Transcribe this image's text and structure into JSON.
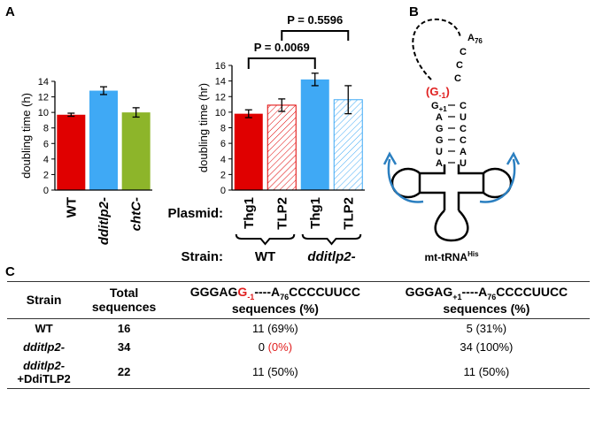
{
  "panel_labels": [
    "A",
    "B",
    "C"
  ],
  "chart_data": [
    {
      "type": "bar",
      "ylabel": "doubling time (h)",
      "categories": [
        "WT",
        "dditlp2-",
        "chtC-"
      ],
      "values": [
        9.7,
        12.8,
        10.0
      ],
      "errors": [
        0.2,
        0.5,
        0.6
      ],
      "colors": [
        "#e00000",
        "#3fa9f5",
        "#8db52a"
      ],
      "ylim": [
        0,
        14
      ],
      "yticks": [
        0,
        2,
        4,
        6,
        8,
        10,
        12,
        14
      ]
    },
    {
      "type": "bar",
      "ylabel": "doubling time (hr)",
      "row_labels": [
        "Plasmid:",
        "Strain:"
      ],
      "categories": [
        "Thg1",
        "TLP2",
        "Thg1",
        "TLP2"
      ],
      "values": [
        9.8,
        10.9,
        14.2,
        11.6
      ],
      "errors": [
        0.5,
        0.8,
        0.8,
        1.8
      ],
      "colors": [
        "#e00000",
        "#e00000",
        "#3fa9f5",
        "#3fa9f5"
      ],
      "hatched": [
        false,
        true,
        false,
        true
      ],
      "groups": [
        "WT",
        "dditlp2-"
      ],
      "annotations": [
        "P = 0.0069",
        "P = 0.5596"
      ],
      "ylim": [
        0,
        16
      ],
      "yticks": [
        0,
        2,
        4,
        6,
        8,
        10,
        12,
        14,
        16
      ]
    }
  ],
  "trna": {
    "tail": [
      "C",
      "C",
      "C"
    ],
    "a76": [
      "A",
      "76"
    ],
    "g_minus1": [
      "(G",
      "-1",
      ")"
    ],
    "stem_left": [
      "G",
      "A",
      "G",
      "G",
      "U",
      "A"
    ],
    "g1_sub": "+1",
    "stem_right": [
      "C",
      "U",
      "C",
      "C",
      "A",
      "U"
    ],
    "name": [
      "mt-tRNA",
      "His"
    ]
  },
  "table": {
    "header": {
      "strain": "Strain",
      "total": [
        "Total",
        "sequences"
      ],
      "col3": {
        "parts": [
          "GGGAG",
          "G",
          "-1",
          "----A",
          "76",
          "CCCCUUCC"
        ],
        "line2": "sequences (%)"
      },
      "col4": {
        "parts": [
          "GGGAG",
          "+1",
          "----A",
          "76",
          "CCCCUUCC"
        ],
        "line2": "sequences (%)"
      }
    },
    "rows": [
      {
        "strain": [
          "WT"
        ],
        "total": "16",
        "c3": [
          "11 (69%)"
        ],
        "c4": "5 (31%)"
      },
      {
        "strain": [
          "dditlp2-"
        ],
        "total": "34",
        "c3": [
          "0",
          "(0%)"
        ],
        "c4": "34 (100%)"
      },
      {
        "strain": [
          "dditlp2-",
          "+DdiTLP2"
        ],
        "total": "22",
        "c3": [
          "11 (50%)"
        ],
        "c4": "11 (50%)"
      }
    ]
  }
}
